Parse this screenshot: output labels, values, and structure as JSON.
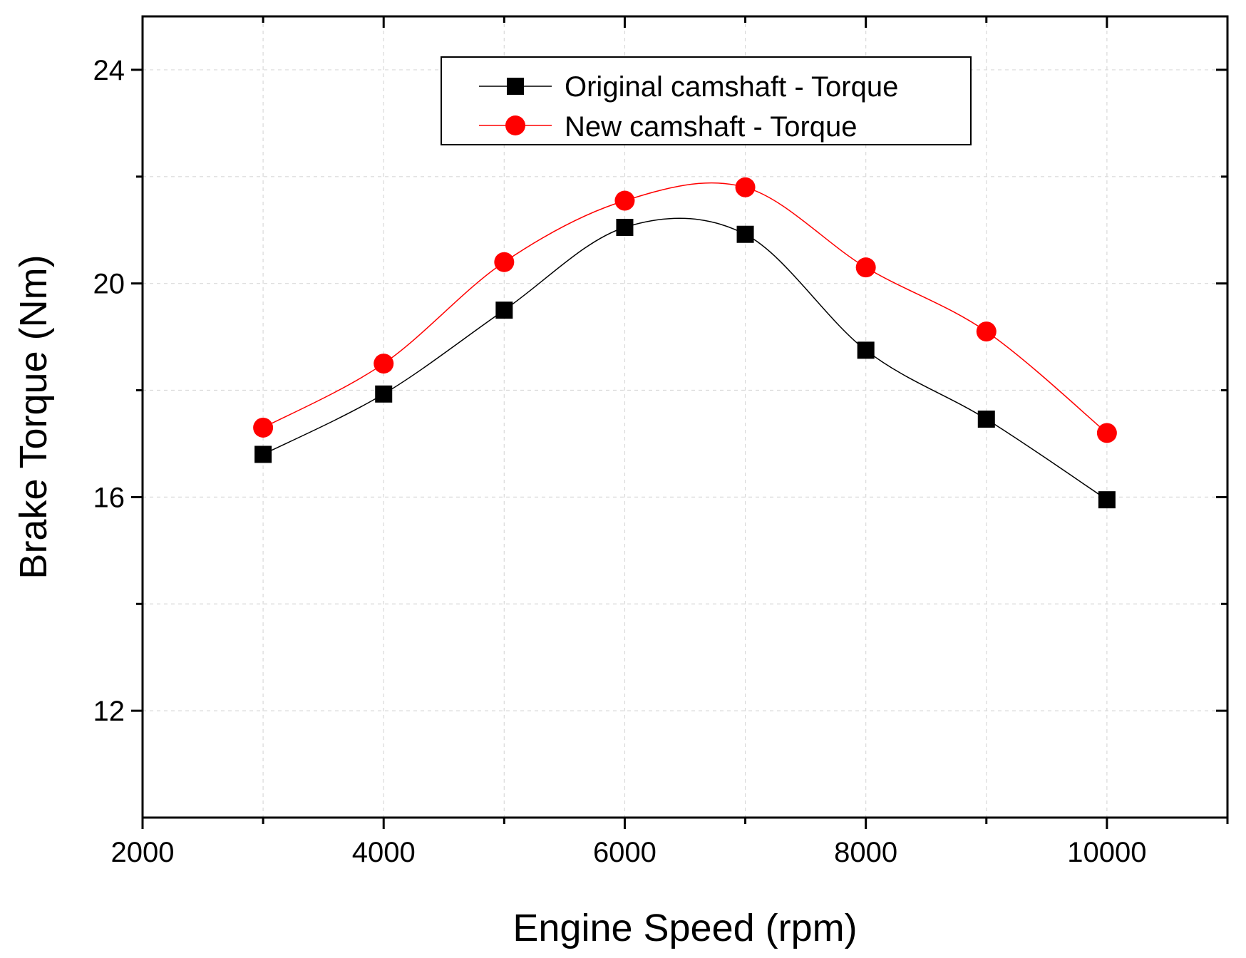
{
  "chart_data": {
    "type": "line",
    "title": "",
    "xlabel": "Engine Speed (rpm)",
    "ylabel": "Brake Torque (Nm)",
    "xlim": [
      2000,
      11000
    ],
    "ylim": [
      10,
      25
    ],
    "x_ticks": [
      2000,
      4000,
      6000,
      8000,
      10000
    ],
    "x_minor_ticks": [
      3000,
      5000,
      7000,
      9000,
      11000
    ],
    "y_ticks": [
      12,
      16,
      20,
      24
    ],
    "y_minor_ticks": [
      14,
      18,
      22
    ],
    "grid": true,
    "legend_position": "top-center",
    "x": [
      3000,
      4000,
      5000,
      6000,
      7000,
      8000,
      9000,
      10000
    ],
    "series": [
      {
        "name": "Original camshaft - Torque",
        "marker": "square",
        "color": "#000000",
        "values": [
          16.8,
          17.93,
          19.5,
          21.05,
          20.92,
          18.75,
          17.46,
          15.95
        ]
      },
      {
        "name": "New camshaft - Torque",
        "marker": "circle",
        "color": "#ff0000",
        "values": [
          17.3,
          18.5,
          20.4,
          21.55,
          21.8,
          20.3,
          19.1,
          17.2
        ]
      }
    ]
  }
}
